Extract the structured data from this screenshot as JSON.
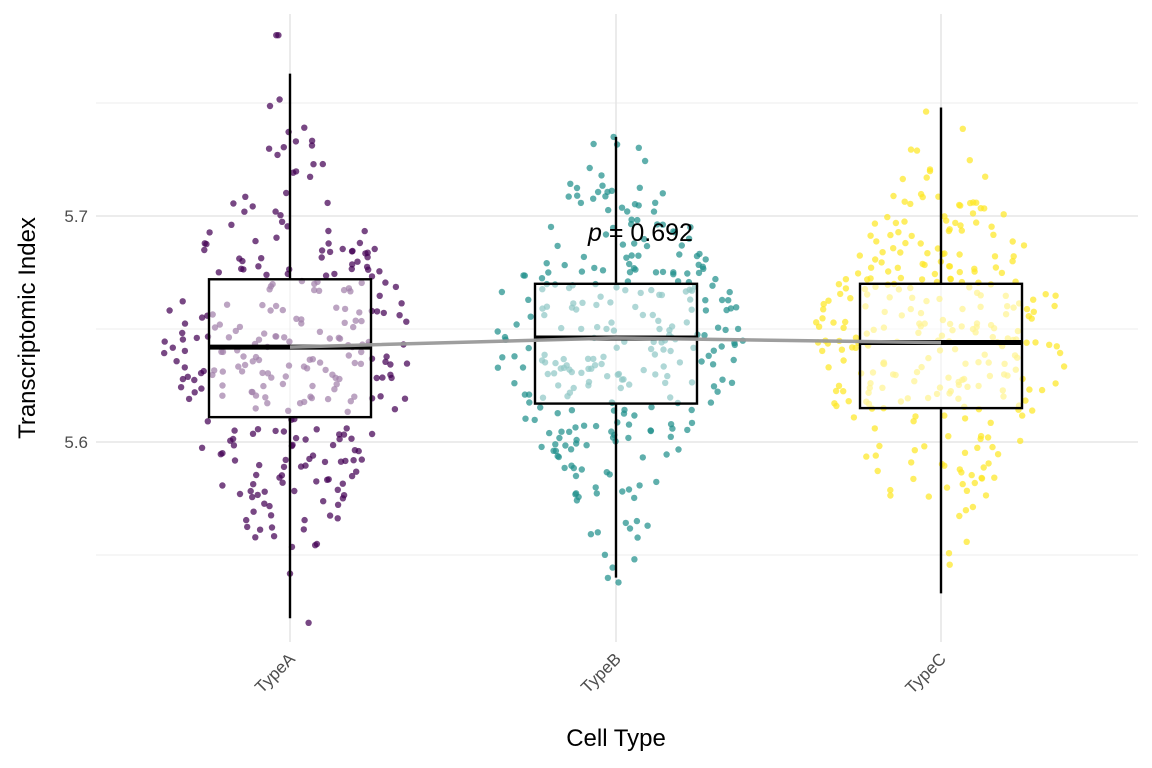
{
  "chart_data": {
    "type": "box",
    "title": "",
    "xlabel": "Cell Type",
    "ylabel": "Transcriptomic Index",
    "categories": [
      "TypeA",
      "TypeB",
      "TypeC"
    ],
    "yticks": [
      "5.6",
      "5.7"
    ],
    "ylim": [
      5.508,
      5.788
    ],
    "grid": true,
    "legend": "none",
    "annotation": {
      "p_symbol": "p",
      "p_text": " = 0.692",
      "category": "TypeB",
      "y": 5.69
    },
    "series": [
      {
        "name": "TypeA",
        "color": "#440154",
        "min": 5.522,
        "q1": 5.611,
        "median": 5.642,
        "q3": 5.672,
        "max": 5.763,
        "n": 300,
        "range": [
          5.52,
          5.78
        ]
      },
      {
        "name": "TypeB",
        "color": "#21908C",
        "min": 5.54,
        "q1": 5.617,
        "median": 5.646,
        "q3": 5.67,
        "max": 5.735,
        "n": 300,
        "range": [
          5.52,
          5.735
        ]
      },
      {
        "name": "TypeC",
        "color": "#FDE725",
        "min": 5.533,
        "q1": 5.615,
        "median": 5.644,
        "q3": 5.67,
        "max": 5.748,
        "n": 300,
        "range": [
          5.53,
          5.748
        ]
      }
    ],
    "mean_line_color": "#999999"
  }
}
